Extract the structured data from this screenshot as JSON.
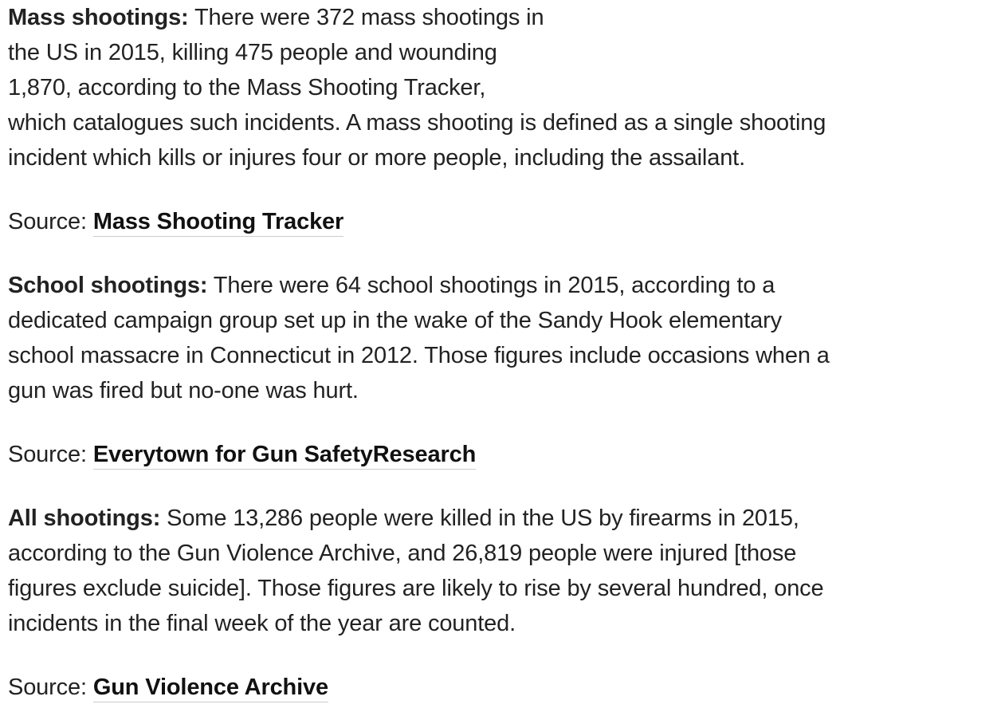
{
  "sections": [
    {
      "heading": "Mass shootings:",
      "body_lines": [
        "There were 372 mass shootings in",
        "the US in 2015, killing 475 people and wounding",
        "1,870, according to the Mass Shooting Tracker,",
        "which catalogues such incidents. A mass shooting is defined as a single shooting",
        "incident which kills or injures four or more people, including the assailant."
      ],
      "source_prefix": "Source:",
      "source_link": "Mass Shooting Tracker"
    },
    {
      "heading": "School shootings:",
      "body_lines": [
        "There were 64 school shootings in 2015, according to a",
        "dedicated campaign group set up in the wake of the Sandy Hook elementary",
        "school massacre in Connecticut in 2012. Those figures include occasions when a",
        "gun was fired but no-one was hurt."
      ],
      "source_prefix": "Source:",
      "source_link": "Everytown for Gun SafetyResearch"
    },
    {
      "heading": "All shootings:",
      "body_lines": [
        "Some 13,286 people were killed in the US by firearms in 2015,",
        "according to the Gun Violence Archive, and 26,819 people were injured [those",
        "figures exclude suicide]. Those figures are likely to rise by several hundred, once",
        "incidents in the final week of the year are counted."
      ],
      "source_prefix": "Source:",
      "source_link": "Gun Violence Archive"
    }
  ]
}
